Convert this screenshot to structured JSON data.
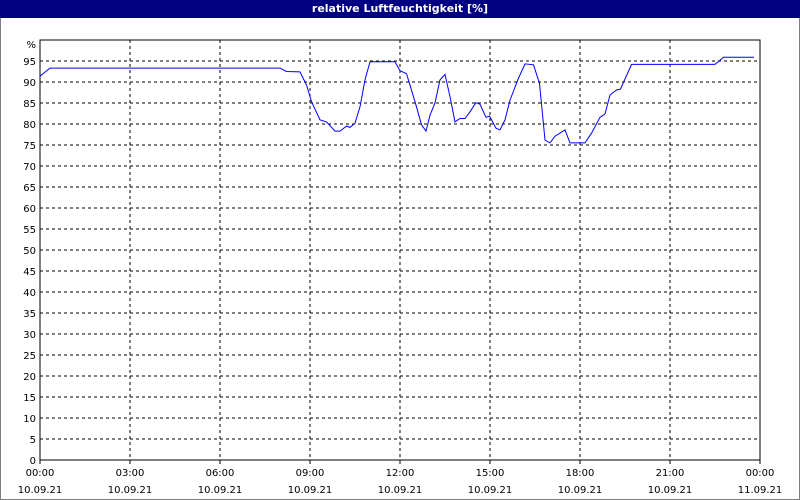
{
  "window": {
    "title": "relative Luftfeuchtigkeit [%]"
  },
  "colors": {
    "title_bar": "#000080",
    "line": "#0000ff",
    "grid": "#000000"
  },
  "chart_data": {
    "type": "line",
    "title": "relative Luftfeuchtigkeit [%]",
    "ylabel": "%",
    "ylim": [
      0,
      100
    ],
    "yticks": [
      0,
      5,
      10,
      15,
      20,
      25,
      30,
      35,
      40,
      45,
      50,
      55,
      60,
      65,
      70,
      75,
      80,
      85,
      90,
      95
    ],
    "xlim": [
      "10.09.21 00:00",
      "11.09.21 00:00"
    ],
    "xticks": [
      {
        "time": "00:00",
        "date": "10.09.21"
      },
      {
        "time": "03:00",
        "date": "10.09.21"
      },
      {
        "time": "06:00",
        "date": "10.09.21"
      },
      {
        "time": "09:00",
        "date": "10.09.21"
      },
      {
        "time": "12:00",
        "date": "10.09.21"
      },
      {
        "time": "15:00",
        "date": "10.09.21"
      },
      {
        "time": "18:00",
        "date": "10.09.21"
      },
      {
        "time": "21:00",
        "date": "10.09.21"
      },
      {
        "time": "00:00",
        "date": "11.09.21"
      }
    ],
    "grid": true,
    "series": [
      {
        "x": [
          "00:00",
          "00:20",
          "08:00",
          "08:13",
          "08:40",
          "08:53",
          "09:03",
          "09:20",
          "09:33",
          "09:50",
          "10:00",
          "10:13",
          "10:20",
          "10:30",
          "10:40",
          "10:50",
          "11:00",
          "11:50",
          "12:00",
          "12:13",
          "12:30",
          "12:43",
          "12:52",
          "13:00",
          "13:10",
          "13:20",
          "13:30",
          "13:40",
          "13:50",
          "14:00",
          "14:10",
          "14:20",
          "14:32",
          "14:40",
          "14:52",
          "14:59",
          "15:12",
          "15:20",
          "15:30",
          "15:40",
          "15:57",
          "16:10",
          "16:27",
          "16:39",
          "16:50",
          "17:00",
          "17:10",
          "17:30",
          "17:40",
          "18:10",
          "18:23",
          "18:40",
          "18:50",
          "19:00",
          "19:13",
          "19:21",
          "19:43",
          "22:30",
          "22:47",
          "23:48"
        ],
        "y": [
          91.4,
          93.3,
          93.3,
          92.5,
          92.4,
          89.3,
          85.3,
          81,
          80.5,
          78.3,
          78.3,
          79.5,
          79.2,
          80.2,
          84.1,
          90.5,
          94.8,
          94.8,
          92.7,
          92,
          85.3,
          79.8,
          78.3,
          82.1,
          85,
          90.5,
          91.8,
          86.5,
          80.5,
          81.3,
          81.3,
          82.9,
          85.1,
          84.7,
          81.6,
          81.9,
          79,
          78.6,
          81,
          85.7,
          90.9,
          94.3,
          94.1,
          89.7,
          76.2,
          75.5,
          77.1,
          78.6,
          75.5,
          75.5,
          77.8,
          81.6,
          82.4,
          86.9,
          88.1,
          88.3,
          94.2,
          94.2,
          95.9,
          95.9
        ]
      }
    ]
  }
}
